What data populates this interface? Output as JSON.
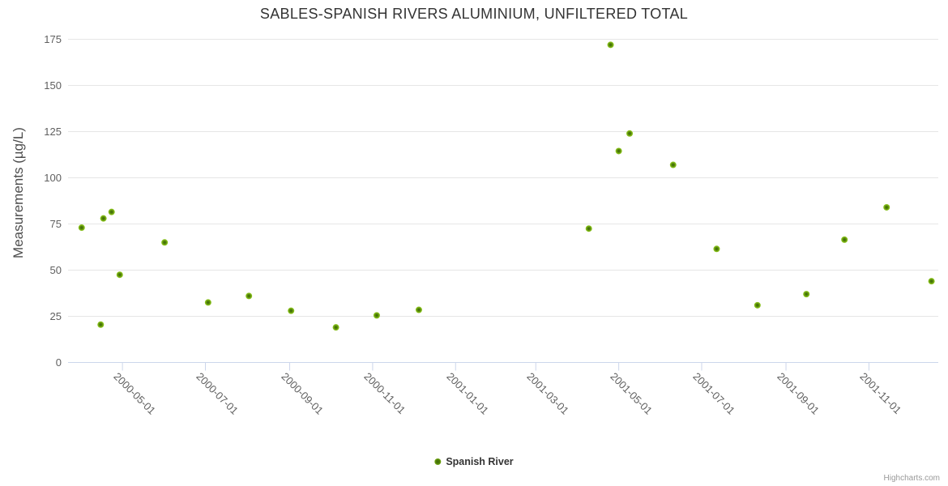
{
  "chart": {
    "title": "SABLES-SPANISH RIVERS ALUMINIUM, UNFILTERED TOTAL",
    "credits": "Highcharts.com"
  },
  "chart_data": {
    "type": "scatter",
    "title": "SABLES-SPANISH RIVERS ALUMINIUM, UNFILTERED TOTAL",
    "xlabel": "",
    "ylabel": "Measurements (µg/L)",
    "ylim": [
      0,
      175
    ],
    "y_ticks": [
      0,
      25,
      50,
      75,
      100,
      125,
      150,
      175
    ],
    "x_ticks": [
      "2000-05-01",
      "2000-07-01",
      "2000-09-01",
      "2000-11-01",
      "2001-01-01",
      "2001-03-01",
      "2001-05-01",
      "2001-07-01",
      "2001-09-01",
      "2001-11-01"
    ],
    "x_range": [
      "2000-03-22",
      "2001-12-22"
    ],
    "grid": true,
    "legend_position": "bottom-center",
    "series": [
      {
        "name": "Spanish River",
        "color": "#7cb414",
        "points": [
          [
            "2000-04-01",
            73
          ],
          [
            "2000-04-15",
            20.5
          ],
          [
            "2000-04-17",
            78
          ],
          [
            "2000-04-23",
            81.5
          ],
          [
            "2000-04-29",
            47.5
          ],
          [
            "2000-06-01",
            65
          ],
          [
            "2000-07-03",
            32.5
          ],
          [
            "2000-08-02",
            36
          ],
          [
            "2000-09-02",
            28
          ],
          [
            "2000-10-05",
            19
          ],
          [
            "2000-11-04",
            25.5
          ],
          [
            "2000-12-05",
            28.5
          ],
          [
            "2001-04-09",
            72.5
          ],
          [
            "2001-04-25",
            172
          ],
          [
            "2001-05-01",
            114.5
          ],
          [
            "2001-05-09",
            124
          ],
          [
            "2001-06-10",
            107
          ],
          [
            "2001-07-12",
            61.5
          ],
          [
            "2001-08-11",
            31
          ],
          [
            "2001-09-16",
            37
          ],
          [
            "2001-10-14",
            66.5
          ],
          [
            "2001-11-14",
            84
          ],
          [
            "2001-12-17",
            44
          ]
        ]
      }
    ],
    "colors": {
      "grid_line": "#e6e6e6",
      "axis_line": "#ccd6eb",
      "title_text": "#333333",
      "tick_text": "#606060",
      "marker_outer": "#8fc723",
      "marker_inner": "#3e6b06"
    }
  }
}
